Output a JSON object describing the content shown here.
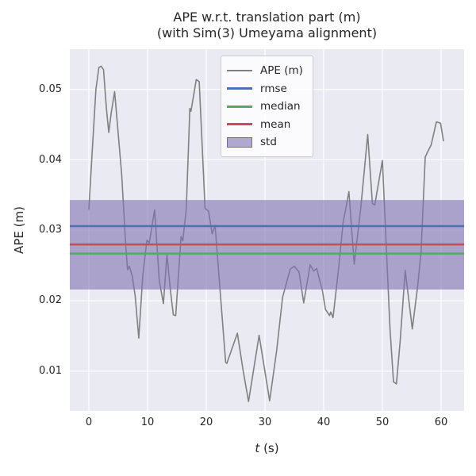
{
  "figure": {
    "title_line1": "APE w.r.t. translation part (m)",
    "title_line2": "(with Sim(3) Umeyama alignment)",
    "ylabel": "APE (m)",
    "xlabel_italic_part": "t",
    "xlabel_regular_part": " (s)"
  },
  "legend": {
    "items": [
      {
        "label": "APE (m)",
        "type": "line",
        "color": "#808080",
        "thickness": 1.6
      },
      {
        "label": "rmse",
        "type": "line",
        "color": "#4C72B0",
        "thickness": 2.8
      },
      {
        "label": "median",
        "type": "line",
        "color": "#55A868",
        "thickness": 2.8
      },
      {
        "label": "mean",
        "type": "line",
        "color": "#C44E52",
        "thickness": 2.8
      },
      {
        "label": "std",
        "type": "patch",
        "color": "rgba(129,114,178,0.6)",
        "edge": "rgba(110,96,160,0.9)"
      }
    ]
  },
  "chart_data": {
    "type": "line",
    "title": "APE w.r.t. translation part (m)\n(with Sim(3) Umeyama alignment)",
    "xlabel": "t (s)",
    "ylabel": "APE (m)",
    "xlim": [
      -3.24,
      63.92
    ],
    "ylim": [
      0.00436,
      0.05571
    ],
    "xticks": [
      0,
      10,
      20,
      30,
      40,
      50,
      60
    ],
    "yticks": [
      0.01,
      0.02,
      0.03,
      0.04,
      0.05
    ],
    "grid": true,
    "plot_bg": "#EAEAF2",
    "grid_color": "#ffffff",
    "series": [
      {
        "name": "APE (m)",
        "kind": "curve",
        "color": "#808080",
        "width": 1.6,
        "points": [
          [
            0.0,
            0.033
          ],
          [
            0.6,
            0.0415
          ],
          [
            1.2,
            0.05
          ],
          [
            1.7,
            0.0531
          ],
          [
            2.1,
            0.0533
          ],
          [
            2.5,
            0.0528
          ],
          [
            3.0,
            0.0472
          ],
          [
            3.4,
            0.0439
          ],
          [
            3.8,
            0.0466
          ],
          [
            4.4,
            0.0497
          ],
          [
            4.9,
            0.0448
          ],
          [
            5.6,
            0.0379
          ],
          [
            6.3,
            0.0276
          ],
          [
            6.6,
            0.0244
          ],
          [
            6.9,
            0.0249
          ],
          [
            7.4,
            0.0235
          ],
          [
            7.9,
            0.0207
          ],
          [
            8.5,
            0.0147
          ],
          [
            9.2,
            0.0238
          ],
          [
            9.9,
            0.0286
          ],
          [
            10.3,
            0.0282
          ],
          [
            11.2,
            0.0329
          ],
          [
            12.0,
            0.0228
          ],
          [
            12.7,
            0.0196
          ],
          [
            13.3,
            0.0266
          ],
          [
            13.9,
            0.0215
          ],
          [
            14.4,
            0.018
          ],
          [
            14.8,
            0.0179
          ],
          [
            15.7,
            0.0291
          ],
          [
            16.0,
            0.0285
          ],
          [
            16.6,
            0.033
          ],
          [
            17.2,
            0.0473
          ],
          [
            17.4,
            0.0469
          ],
          [
            18.3,
            0.0514
          ],
          [
            18.8,
            0.0511
          ],
          [
            19.8,
            0.0331
          ],
          [
            20.4,
            0.0327
          ],
          [
            21.0,
            0.0295
          ],
          [
            21.5,
            0.0307
          ],
          [
            23.3,
            0.0113
          ],
          [
            23.5,
            0.0111
          ],
          [
            25.3,
            0.0154
          ],
          [
            26.3,
            0.01
          ],
          [
            27.2,
            0.0057
          ],
          [
            29.0,
            0.0151
          ],
          [
            30.8,
            0.0058
          ],
          [
            32.0,
            0.013
          ],
          [
            33.0,
            0.0205
          ],
          [
            34.3,
            0.0245
          ],
          [
            35.0,
            0.0249
          ],
          [
            35.8,
            0.0241
          ],
          [
            36.6,
            0.0197
          ],
          [
            37.7,
            0.0251
          ],
          [
            38.3,
            0.0242
          ],
          [
            38.8,
            0.0246
          ],
          [
            39.8,
            0.0214
          ],
          [
            40.3,
            0.0188
          ],
          [
            41.0,
            0.0179
          ],
          [
            41.2,
            0.0184
          ],
          [
            41.6,
            0.0176
          ],
          [
            42.6,
            0.025
          ],
          [
            43.3,
            0.031
          ],
          [
            44.3,
            0.0355
          ],
          [
            45.2,
            0.0252
          ],
          [
            46.3,
            0.033
          ],
          [
            47.5,
            0.0436
          ],
          [
            48.3,
            0.0338
          ],
          [
            48.7,
            0.0336
          ],
          [
            50.0,
            0.0399
          ],
          [
            51.3,
            0.016
          ],
          [
            51.9,
            0.0085
          ],
          [
            52.4,
            0.0082
          ],
          [
            53.0,
            0.014
          ],
          [
            53.9,
            0.0243
          ],
          [
            55.1,
            0.016
          ],
          [
            56.0,
            0.022
          ],
          [
            56.6,
            0.027
          ],
          [
            57.3,
            0.0404
          ],
          [
            57.8,
            0.0413
          ],
          [
            58.3,
            0.0421
          ],
          [
            59.2,
            0.0454
          ],
          [
            59.9,
            0.0452
          ],
          [
            60.4,
            0.0427
          ]
        ]
      },
      {
        "name": "rmse",
        "kind": "hline",
        "color": "#4C72B0",
        "width": 2.5,
        "value": 0.0306
      },
      {
        "name": "median",
        "kind": "hline",
        "color": "#55A868",
        "width": 2.5,
        "value": 0.0267
      },
      {
        "name": "mean",
        "kind": "hline",
        "color": "#C44E52",
        "width": 2.5,
        "value": 0.028
      },
      {
        "name": "std",
        "kind": "band",
        "color": "rgba(129,114,178,0.6)",
        "band": [
          0.0216,
          0.0343
        ]
      }
    ]
  }
}
